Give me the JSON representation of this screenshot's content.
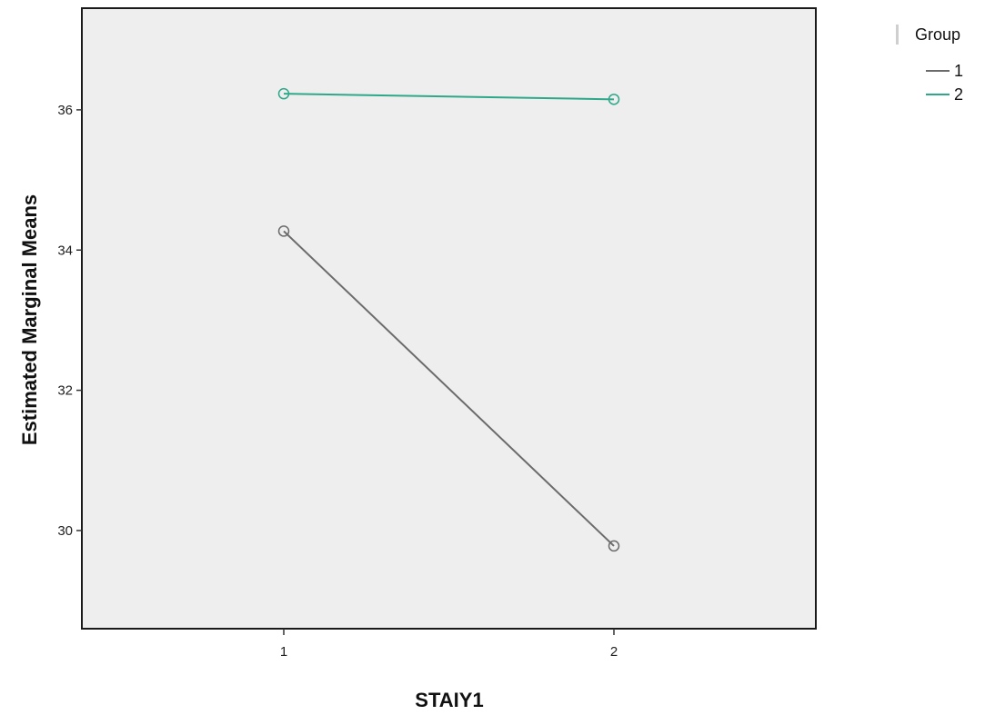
{
  "chart_data": {
    "type": "line",
    "title": "",
    "xlabel": "STAIY1",
    "ylabel": "Estimated Marginal Means",
    "categories": [
      "1",
      "2"
    ],
    "ylim": [
      28.6,
      37.45
    ],
    "yticks": [
      "30",
      "32",
      "34",
      "36"
    ],
    "grid": false,
    "legend": {
      "title": "Group",
      "position": "right"
    },
    "series": [
      {
        "name": "1",
        "values": [
          34.27,
          29.78
        ],
        "color": "#6b6b6b"
      },
      {
        "name": "2",
        "values": [
          36.23,
          36.15
        ],
        "color": "#2ea889"
      }
    ]
  }
}
